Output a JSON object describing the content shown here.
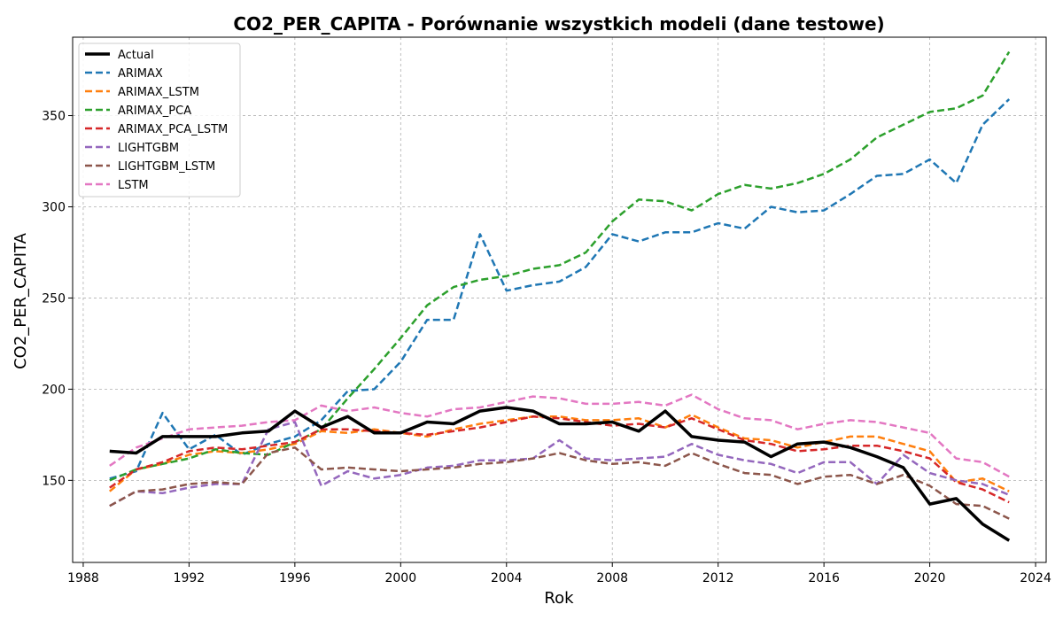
{
  "chart_data": {
    "type": "line",
    "title": "CO2_PER_CAPITA - Porównanie wszystkich modeli (dane testowe)",
    "xlabel": "Rok",
    "ylabel": "CO2_PER_CAPITA",
    "xlim": [
      1987.6,
      2024.4
    ],
    "ylim": [
      105,
      393
    ],
    "xticks": [
      1988,
      1992,
      1996,
      2000,
      2004,
      2008,
      2012,
      2016,
      2020,
      2024
    ],
    "yticks": [
      150,
      200,
      250,
      300,
      350
    ],
    "grid": true,
    "legend_position": "top-left",
    "x": [
      1989,
      1990,
      1991,
      1992,
      1993,
      1994,
      1995,
      1996,
      1997,
      1998,
      1999,
      2000,
      2001,
      2002,
      2003,
      2004,
      2005,
      2006,
      2007,
      2008,
      2009,
      2010,
      2011,
      2012,
      2013,
      2014,
      2015,
      2016,
      2017,
      2018,
      2019,
      2020,
      2021,
      2022,
      2023
    ],
    "series": [
      {
        "name": "Actual",
        "color": "#000000",
        "dashed": false,
        "width": 3.5,
        "values": [
          166,
          165,
          174,
          174,
          174,
          176,
          177,
          188,
          179,
          185,
          176,
          176,
          182,
          181,
          188,
          190,
          188,
          181,
          181,
          182,
          177,
          188,
          174,
          172,
          171,
          163,
          170,
          171,
          168,
          163,
          157,
          137,
          140,
          126,
          117
        ]
      },
      {
        "name": "ARIMAX",
        "color": "#1f77b4",
        "dashed": true,
        "width": 2.5,
        "values": [
          151,
          155,
          187,
          167,
          175,
          164,
          170,
          174,
          183,
          199,
          200,
          215,
          238,
          238,
          285,
          254,
          257,
          259,
          267,
          285,
          281,
          286,
          286,
          291,
          288,
          300,
          297,
          298,
          307,
          317,
          318,
          326,
          313,
          345,
          359
        ]
      },
      {
        "name": "ARIMAX_LSTM",
        "color": "#ff7f0e",
        "dashed": true,
        "width": 2.5,
        "values": [
          144,
          156,
          159,
          164,
          166,
          165,
          167,
          170,
          177,
          176,
          178,
          176,
          174,
          178,
          181,
          183,
          185,
          185,
          183,
          183,
          184,
          179,
          186,
          179,
          173,
          172,
          168,
          171,
          174,
          174,
          170,
          166,
          149,
          151,
          144
        ]
      },
      {
        "name": "ARIMAX_PCA",
        "color": "#2ca02c",
        "dashed": true,
        "width": 2.5,
        "values": [
          150,
          156,
          159,
          162,
          167,
          165,
          164,
          171,
          178,
          195,
          211,
          228,
          246,
          256,
          260,
          262,
          266,
          268,
          275,
          292,
          304,
          303,
          298,
          307,
          312,
          310,
          313,
          318,
          326,
          338,
          345,
          352,
          354,
          361,
          385
        ]
      },
      {
        "name": "ARIMAX_PCA_LSTM",
        "color": "#d62728",
        "dashed": true,
        "width": 2.5,
        "values": [
          146,
          156,
          160,
          166,
          168,
          167,
          169,
          171,
          178,
          178,
          177,
          176,
          175,
          177,
          179,
          182,
          185,
          184,
          182,
          180,
          181,
          179,
          184,
          178,
          172,
          170,
          166,
          167,
          169,
          169,
          166,
          162,
          149,
          145,
          138
        ]
      },
      {
        "name": "LIGHTGBM",
        "color": "#9467bd",
        "dashed": true,
        "width": 2.5,
        "values": [
          136,
          144,
          143,
          146,
          148,
          148,
          178,
          182,
          147,
          155,
          151,
          153,
          157,
          158,
          161,
          161,
          162,
          172,
          162,
          161,
          162,
          163,
          170,
          164,
          161,
          159,
          154,
          160,
          160,
          148,
          164,
          154,
          150,
          148,
          142
        ]
      },
      {
        "name": "LIGHTGBM_LSTM",
        "color": "#8c564b",
        "dashed": true,
        "width": 2.5,
        "values": [
          136,
          144,
          145,
          148,
          149,
          148,
          165,
          168,
          156,
          157,
          156,
          155,
          156,
          157,
          159,
          160,
          162,
          165,
          161,
          159,
          160,
          158,
          165,
          159,
          154,
          153,
          148,
          152,
          153,
          148,
          153,
          147,
          137,
          136,
          129
        ]
      },
      {
        "name": "LSTM",
        "color": "#e377c2",
        "dashed": true,
        "width": 2.5,
        "values": [
          158,
          168,
          173,
          178,
          179,
          180,
          182,
          183,
          191,
          188,
          190,
          187,
          185,
          189,
          190,
          193,
          196,
          195,
          192,
          192,
          193,
          191,
          197,
          189,
          184,
          183,
          178,
          181,
          183,
          182,
          179,
          176,
          162,
          160,
          152
        ]
      }
    ]
  }
}
